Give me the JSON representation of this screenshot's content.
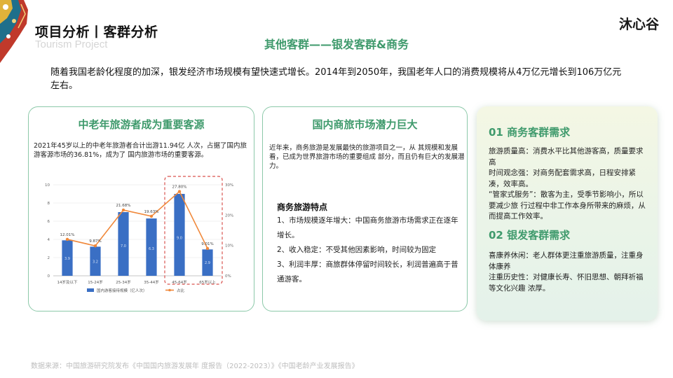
{
  "header": {
    "title": "项目分析丨客群分析",
    "subtitle_en": "Tourism Project",
    "logo_text": "沐心谷"
  },
  "page_subtitle": "其他客群——银发客群&商务",
  "intro_text": "随着我国老龄化程度的加深，银发经济市场规模有望快速式增长。2014年到2050年，我国老年人口的消费规模将从4万亿元增长到106万亿元左右。",
  "card1": {
    "title": "中老年旅游者成为重要客源",
    "text": "2021年45岁以上的中老年旅游者合计出游11.94亿 人次，占据了国内旅游客源市场的36.81%，成为了 国内旅游市场的重要客源。"
  },
  "card2": {
    "title": "国内商旅市场潜力巨大",
    "text": "近年来，商务旅游是发展最快的旅游项目之一，从 其规模和发展看，已成为世界旅游市场的重要组成 部分，而且仍有巨大的发展潜力。",
    "feature_title": "商务旅游特点",
    "features": [
      "1、市场规模逐年增大：中国商务旅游市场需求正在逐年增长。",
      "2、收入稳定：不受其他因素影响，时间较为固定",
      " 3、利润丰厚：商旅群体停留时间较长，利润普遍高于普通游客。"
    ]
  },
  "card3": {
    "section1_title": "01 商务客群需求",
    "section1_lines": [
      "旅游质量高：消费水平比其他游客高，质量要求高",
      "时间观念强：对商务配套需求高，日程安排紧凑，效率高。",
      "“管家式服务”：散客为主，受季节影响小，所以要减少旅 行过程中非工作本身所带来的麻烦，从而提高工作效率。"
    ],
    "section2_title": "02 银发客群需求",
    "section2_lines": [
      "喜康养休闲：老人群体更注重旅游质量，注重身体康养",
      "注重历史性：对健康长寿、怀旧思想、朝拜祈福等文化兴趣 浓厚。"
    ]
  },
  "footer": "数据来源：中国旅游研究院发布《中国国内旅游发展年 度报告（2022-2023）》《中国老龄产业发展报告》",
  "colors": {
    "accent_green": "#3f9a6c",
    "bar_blue": "#3a6fc4",
    "line_orange": "#f0883a",
    "highlight_red": "#d9534f"
  },
  "chart_data": {
    "type": "bar",
    "categories": [
      "14岁及以下",
      "15-24岁",
      "25-34岁",
      "35-44岁",
      "45-64岁",
      "65岁以上"
    ],
    "series": [
      {
        "name": "国内游客接待规模（亿人次）",
        "type": "bar",
        "axis": "left",
        "values": [
          3.9,
          3.2,
          7.0,
          6.3,
          9.0,
          2.9
        ],
        "labels": [
          "3.9",
          "3.2",
          "7.0",
          "6.3",
          "9.0",
          "2.9"
        ]
      },
      {
        "name": "占比",
        "type": "line",
        "axis": "right",
        "values": [
          12.01,
          9.87,
          21.68,
          19.63,
          27.8,
          9.01
        ],
        "labels": [
          "12.01%",
          "9.87%",
          "21.68%",
          "19.63%",
          "27.80%",
          "9.01%"
        ]
      }
    ],
    "ylim_left": [
      0,
      10
    ],
    "yticks_left": [
      "0",
      "2",
      "4",
      "6",
      "8",
      "10"
    ],
    "ylim_right": [
      0,
      30
    ],
    "yticks_right": [
      "0%",
      "10%",
      "20%",
      "30%"
    ],
    "highlight_categories": [
      "45-64岁",
      "65岁以上"
    ],
    "legend_position": "bottom"
  }
}
